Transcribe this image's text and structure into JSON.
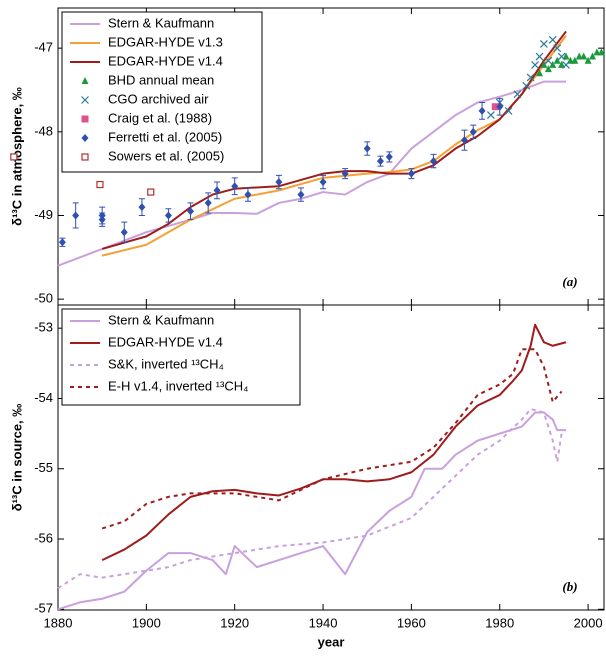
{
  "chart_data": [
    {
      "type": "line",
      "ylabel": "δ¹³C in atmosphere, ‰",
      "annotation": "(a)",
      "xlim": [
        1880,
        2003.6
      ],
      "xticks": [
        1880,
        1900,
        1920,
        1940,
        1960,
        1980,
        2000
      ],
      "ylim": [
        -50.07,
        -46.52
      ],
      "yticks": [
        -50,
        -49,
        -48,
        -47
      ],
      "legend": "upper left",
      "series": [
        {
          "name": "Stern & Kaufmann",
          "color": "#c9a0dc",
          "marker": "line",
          "x": [
            1880,
            1890,
            1900,
            1910,
            1915,
            1920,
            1925,
            1930,
            1935,
            1940,
            1945,
            1950,
            1955,
            1960,
            1965,
            1970,
            1975,
            1980,
            1985,
            1990,
            1995
          ],
          "values": [
            -49.6,
            -49.4,
            -49.2,
            -49.05,
            -48.97,
            -48.97,
            -48.98,
            -48.85,
            -48.8,
            -48.72,
            -48.75,
            -48.6,
            -48.5,
            -48.2,
            -48.0,
            -47.8,
            -47.65,
            -47.58,
            -47.5,
            -47.4,
            -47.4
          ]
        },
        {
          "name": "EDGAR-HYDE v1.3",
          "color": "#f5a033",
          "marker": "line",
          "x": [
            1890,
            1900,
            1910,
            1920,
            1930,
            1940,
            1950,
            1955,
            1960,
            1965,
            1970,
            1975,
            1980,
            1985,
            1990,
            1995
          ],
          "values": [
            -49.48,
            -49.35,
            -49.05,
            -48.8,
            -48.7,
            -48.55,
            -48.5,
            -48.48,
            -48.45,
            -48.35,
            -48.15,
            -47.98,
            -47.85,
            -47.55,
            -47.2,
            -46.85
          ]
        },
        {
          "name": "EDGAR-HYDE v1.4",
          "color": "#9e1c1c",
          "marker": "line",
          "x": [
            1890,
            1900,
            1905,
            1910,
            1915,
            1920,
            1930,
            1940,
            1945,
            1950,
            1955,
            1960,
            1965,
            1970,
            1975,
            1980,
            1985,
            1990,
            1995
          ],
          "values": [
            -49.4,
            -49.25,
            -49.1,
            -48.9,
            -48.75,
            -48.68,
            -48.65,
            -48.5,
            -48.47,
            -48.47,
            -48.5,
            -48.5,
            -48.4,
            -48.2,
            -48.05,
            -47.85,
            -47.55,
            -47.15,
            -46.8
          ]
        },
        {
          "name": "BHD annual mean",
          "color": "#1a9a3a",
          "marker": "triangle",
          "x": [
            1989,
            1990,
            1991,
            1992,
            1993,
            1994,
            1995,
            1996,
            1997,
            1998,
            1999,
            2000,
            2001,
            2002,
            2003
          ],
          "values": [
            -47.3,
            -47.2,
            -47.25,
            -47.2,
            -47.15,
            -47.2,
            -47.1,
            -47.15,
            -47.15,
            -47.1,
            -47.1,
            -47.15,
            -47.1,
            -47.05,
            -47.05
          ]
        },
        {
          "name": "CGO archived air",
          "color": "#2a7a9a",
          "marker": "x",
          "x": [
            1978,
            1980,
            1982,
            1984,
            1986,
            1987,
            1988,
            1989,
            1990,
            1991,
            1992,
            1993,
            1994,
            1995
          ],
          "values": [
            -47.8,
            -47.65,
            -47.75,
            -47.55,
            -47.45,
            -47.35,
            -47.2,
            -47.1,
            -46.95,
            -47.15,
            -46.9,
            -47.0,
            -47.1,
            -47.2
          ]
        },
        {
          "name": "Craig et al. (1988)",
          "color": "#e0508a",
          "marker": "square",
          "x": [
            1979
          ],
          "values": [
            -47.7
          ]
        },
        {
          "name": "Ferretti et al. (2005)",
          "color": "#3050b0",
          "marker": "diamond",
          "x": [
            1881,
            1884,
            1890,
            1890,
            1895,
            1899,
            1905,
            1910,
            1914,
            1916,
            1920,
            1923,
            1930,
            1935,
            1940,
            1945,
            1950,
            1953,
            1955,
            1960,
            1965,
            1972,
            1974,
            1976,
            1980
          ],
          "values": [
            -49.32,
            -49.0,
            -49.0,
            -49.05,
            -49.2,
            -48.9,
            -49.0,
            -48.95,
            -48.85,
            -48.7,
            -48.65,
            -48.75,
            -48.6,
            -48.75,
            -48.6,
            -48.5,
            -48.2,
            -48.35,
            -48.3,
            -48.5,
            -48.35,
            -48.1,
            -48.0,
            -47.75,
            -47.7
          ],
          "errors": [
            0.05,
            0.15,
            0.1,
            0.08,
            0.12,
            0.1,
            0.08,
            0.1,
            0.12,
            0.1,
            0.1,
            0.08,
            0.08,
            0.08,
            0.08,
            0.06,
            0.08,
            0.06,
            0.06,
            0.06,
            0.08,
            0.12,
            0.08,
            0.1,
            0.1
          ]
        },
        {
          "name": "Sowers et al. (2005)",
          "color": "#b03030",
          "marker": "open-square",
          "x": [
            1870,
            1889.5,
            1901
          ],
          "values": [
            -48.3,
            -48.63,
            -48.72
          ]
        }
      ]
    },
    {
      "type": "line",
      "ylabel": "δ¹³C in source, ‰",
      "xlabel": "year",
      "annotation": "(b)",
      "xlim": [
        1880,
        2003.6
      ],
      "xticks": [
        1880,
        1900,
        1920,
        1940,
        1960,
        1980,
        2000
      ],
      "ylim": [
        -57.01,
        -52.67
      ],
      "yticks": [
        -57,
        -56,
        -55,
        -54,
        -53
      ],
      "legend": "upper left",
      "series": [
        {
          "name": "Stern & Kaufmann",
          "color": "#c9a0dc",
          "marker": "line",
          "x": [
            1880,
            1885,
            1890,
            1895,
            1900,
            1905,
            1910,
            1915,
            1918,
            1920,
            1925,
            1930,
            1935,
            1940,
            1945,
            1950,
            1955,
            1960,
            1963,
            1967,
            1970,
            1975,
            1980,
            1985,
            1988,
            1990,
            1992,
            1993,
            1995
          ],
          "values": [
            -57.0,
            -56.9,
            -56.85,
            -56.75,
            -56.45,
            -56.2,
            -56.2,
            -56.3,
            -56.5,
            -56.1,
            -56.4,
            -56.3,
            -56.2,
            -56.1,
            -56.5,
            -55.9,
            -55.6,
            -55.4,
            -55.0,
            -55.0,
            -54.8,
            -54.6,
            -54.5,
            -54.4,
            -54.2,
            -54.2,
            -54.3,
            -54.45,
            -54.45
          ]
        },
        {
          "name": "EDGAR-HYDE v1.4",
          "color": "#9e1c1c",
          "marker": "line",
          "x": [
            1890,
            1895,
            1900,
            1905,
            1910,
            1915,
            1920,
            1925,
            1930,
            1935,
            1940,
            1945,
            1950,
            1955,
            1960,
            1965,
            1970,
            1975,
            1980,
            1983,
            1985,
            1987,
            1988,
            1990,
            1992,
            1995
          ],
          "values": [
            -56.3,
            -56.15,
            -55.95,
            -55.65,
            -55.4,
            -55.32,
            -55.3,
            -55.35,
            -55.38,
            -55.28,
            -55.15,
            -55.15,
            -55.18,
            -55.15,
            -55.05,
            -54.8,
            -54.4,
            -54.1,
            -53.95,
            -53.75,
            -53.6,
            -53.25,
            -52.95,
            -53.2,
            -53.25,
            -53.2
          ]
        },
        {
          "name": "S&K, inverted ¹³CH₄",
          "color": "#c9a0dc",
          "marker": "line",
          "dashed": true,
          "x": [
            1880,
            1885,
            1890,
            1895,
            1900,
            1905,
            1910,
            1920,
            1930,
            1940,
            1950,
            1960,
            1965,
            1970,
            1975,
            1980,
            1985,
            1987,
            1990,
            1992,
            1993,
            1994
          ],
          "values": [
            -56.7,
            -56.5,
            -56.55,
            -56.5,
            -56.45,
            -56.4,
            -56.3,
            -56.2,
            -56.1,
            -56.05,
            -55.95,
            -55.7,
            -55.4,
            -55.1,
            -54.8,
            -54.6,
            -54.3,
            -54.15,
            -54.2,
            -54.6,
            -54.9,
            -54.5
          ]
        },
        {
          "name": "E-H v1.4, inverted ¹³CH₄",
          "color": "#9e1c1c",
          "marker": "line",
          "dashed": true,
          "x": [
            1890,
            1895,
            1900,
            1905,
            1910,
            1915,
            1920,
            1930,
            1940,
            1950,
            1955,
            1960,
            1965,
            1970,
            1975,
            1980,
            1983,
            1985,
            1988,
            1990,
            1992,
            1994
          ],
          "values": [
            -55.85,
            -55.75,
            -55.5,
            -55.4,
            -55.35,
            -55.35,
            -55.35,
            -55.45,
            -55.15,
            -55.0,
            -54.95,
            -54.9,
            -54.7,
            -54.35,
            -53.95,
            -53.8,
            -53.65,
            -53.3,
            -53.3,
            -53.55,
            -54.05,
            -53.9
          ]
        }
      ]
    }
  ]
}
